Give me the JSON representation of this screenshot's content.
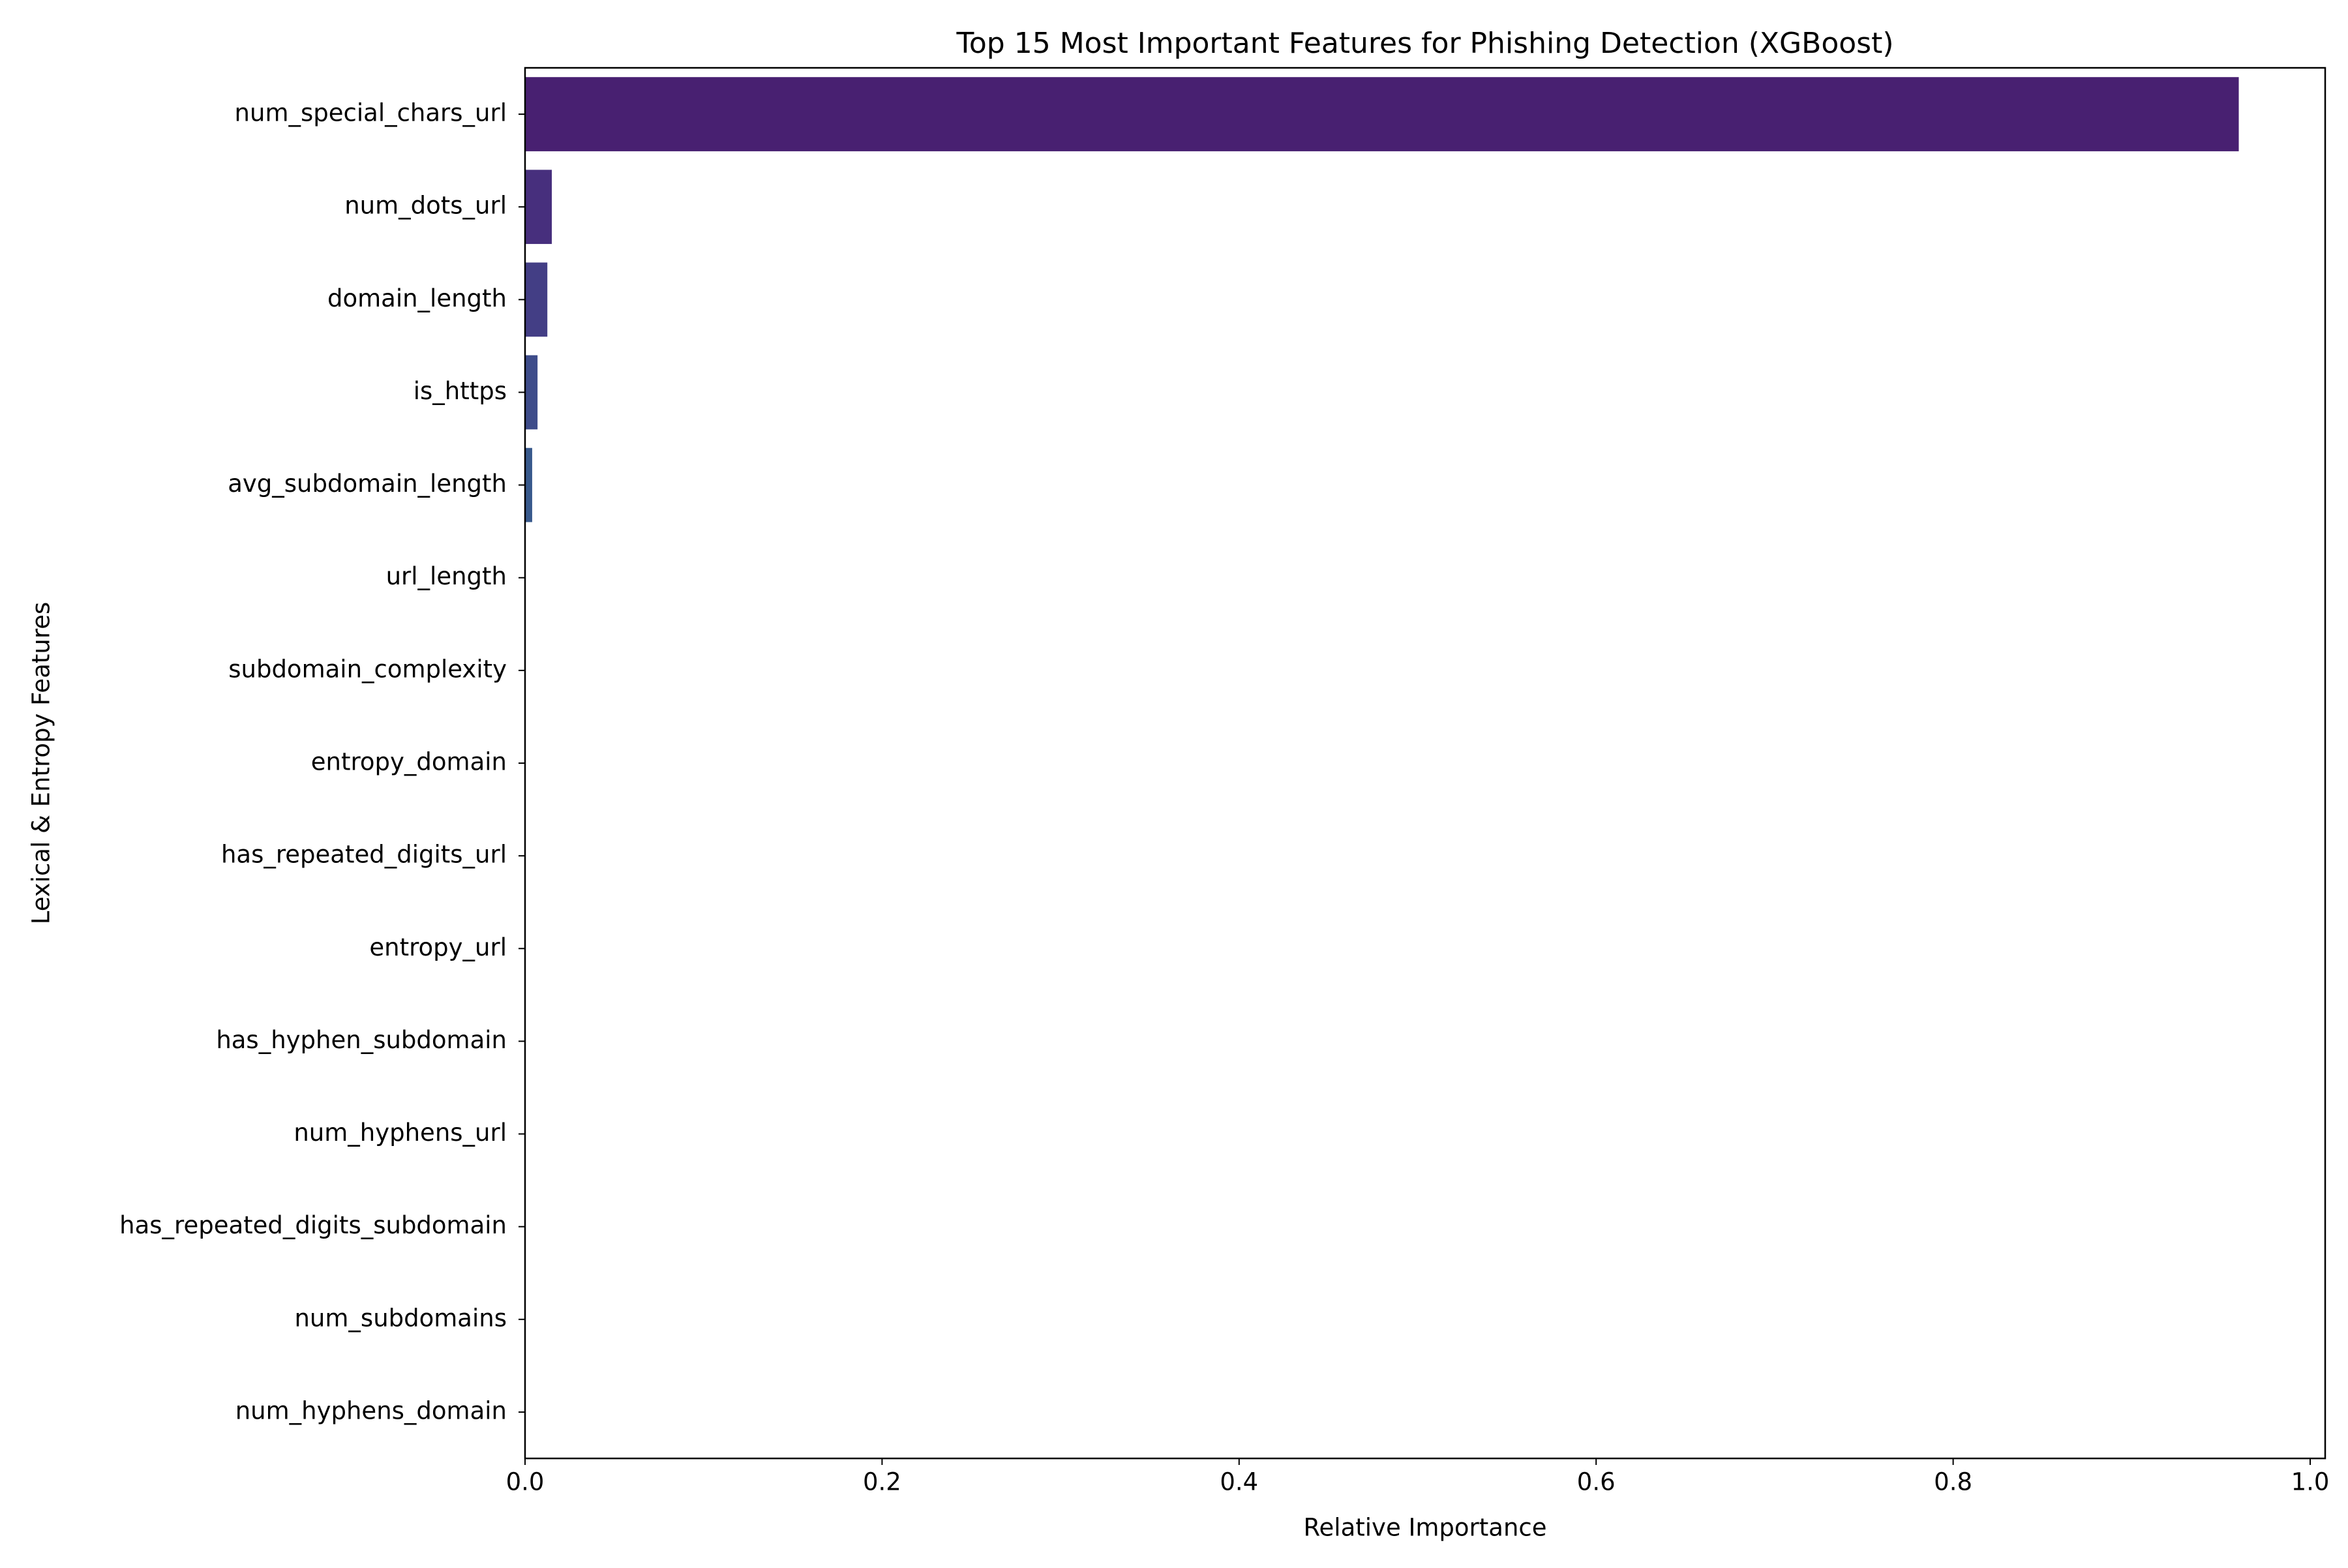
{
  "chart_data": {
    "type": "barh",
    "title": "Top 15 Most Important Features for Phishing Detection (XGBoost)",
    "x_label": "Relative Importance",
    "y_label": "Lexical & Entropy Features",
    "categories": [
      "num_special_chars_url",
      "num_dots_url",
      "domain_length",
      "is_https",
      "avg_subdomain_length",
      "url_length",
      "subdomain_complexity",
      "entropy_domain",
      "has_repeated_digits_url",
      "entropy_url",
      "has_hyphen_subdomain",
      "num_hyphens_url",
      "has_repeated_digits_subdomain",
      "num_subdomains",
      "num_hyphens_domain"
    ],
    "values": [
      0.96,
      0.015,
      0.0125,
      0.007,
      0.004,
      0,
      0,
      0,
      0,
      0,
      0,
      0,
      0,
      0,
      0
    ],
    "colors": [
      "#482071",
      "#472f7d",
      "#433e85",
      "#3e4c8a",
      "#38598c",
      "#33638d",
      "#2d708e",
      "#287c8e",
      "#23898e",
      "#20938c",
      "#1fa088",
      "#29af7f",
      "#3bbb75",
      "#56c667",
      "#75d054"
    ],
    "xlim": [
      0,
      1.0084
    ],
    "xticks": [
      {
        "value": 0,
        "label": "0.0"
      },
      0.2,
      0.4,
      0.6,
      0.8,
      {
        "value": 1,
        "label": "1.0"
      }
    ],
    "grid": false
  }
}
